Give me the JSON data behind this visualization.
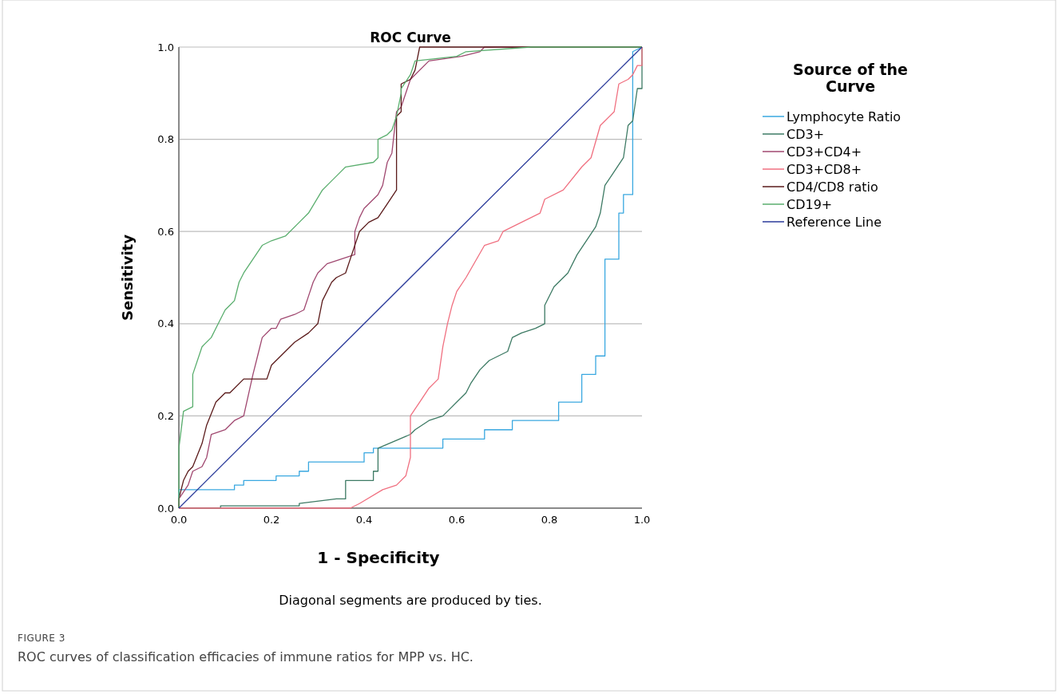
{
  "chart_data": {
    "type": "line",
    "title": "ROC Curve",
    "xlabel": "1 - Specificity",
    "ylabel": "Sensitivity",
    "legend_title": "Source of the Curve",
    "legend": "right",
    "grid": "y",
    "line_style": "solid",
    "marker": "none",
    "xlim": [
      0,
      1
    ],
    "ylim": [
      0,
      1
    ],
    "xticks": [
      {
        "value": 0,
        "label": "0.0"
      },
      {
        "value": 0.2,
        "label": "0.2"
      },
      {
        "value": 0.4,
        "label": "0.4"
      },
      {
        "value": 0.6,
        "label": "0.6"
      },
      {
        "value": 0.8,
        "label": "0.8"
      },
      {
        "value": 1,
        "label": "1.0"
      }
    ],
    "yticks": [
      {
        "value": 0,
        "label": "0.0"
      },
      {
        "value": 0.2,
        "label": "0.2"
      },
      {
        "value": 0.4,
        "label": "0.4"
      },
      {
        "value": 0.6,
        "label": "0.6"
      },
      {
        "value": 0.8,
        "label": "0.8"
      },
      {
        "value": 1,
        "label": "1.0"
      }
    ],
    "annotations": [
      "Diagonal segments are produced by ties.",
      "FIGURE 3",
      "ROC curves of classification efficacies of immune ratios for MPP vs. HC."
    ],
    "series": [
      {
        "name": "Lymphocyte Ratio",
        "color": "#3aa8e0",
        "x": [
          0,
          0,
          0.12,
          0.12,
          0.14,
          0.14,
          0.21,
          0.21,
          0.26,
          0.26,
          0.28,
          0.28,
          0.36,
          0.36,
          0.4,
          0.4,
          0.42,
          0.42,
          0.57,
          0.57,
          0.66,
          0.66,
          0.72,
          0.72,
          0.82,
          0.82,
          0.87,
          0.87,
          0.9,
          0.9,
          0.92,
          0.92,
          0.95,
          0.95,
          0.96,
          0.96,
          0.98,
          0.98,
          1
        ],
        "values": [
          0,
          0.04,
          0.04,
          0.05,
          0.05,
          0.06,
          0.06,
          0.07,
          0.07,
          0.08,
          0.08,
          0.1,
          0.1,
          0.1,
          0.1,
          0.12,
          0.12,
          0.13,
          0.13,
          0.15,
          0.15,
          0.17,
          0.17,
          0.19,
          0.19,
          0.23,
          0.23,
          0.29,
          0.29,
          0.33,
          0.33,
          0.54,
          0.54,
          0.64,
          0.64,
          0.68,
          0.68,
          0.99,
          1
        ]
      },
      {
        "name": "CD3+",
        "color": "#3d7a64",
        "x": [
          0,
          0.09,
          0.09,
          0.26,
          0.26,
          0.34,
          0.36,
          0.36,
          0.42,
          0.42,
          0.43,
          0.43,
          0.5,
          0.51,
          0.54,
          0.57,
          0.6,
          0.62,
          0.63,
          0.65,
          0.67,
          0.69,
          0.71,
          0.72,
          0.74,
          0.77,
          0.79,
          0.79,
          0.81,
          0.84,
          0.86,
          0.9,
          0.91,
          0.92,
          0.94,
          0.96,
          0.97,
          0.98,
          0.99,
          1,
          1
        ],
        "values": [
          0,
          0,
          0.005,
          0.005,
          0.01,
          0.02,
          0.02,
          0.06,
          0.06,
          0.08,
          0.08,
          0.13,
          0.16,
          0.17,
          0.19,
          0.2,
          0.23,
          0.25,
          0.27,
          0.3,
          0.32,
          0.33,
          0.34,
          0.37,
          0.38,
          0.39,
          0.4,
          0.44,
          0.48,
          0.51,
          0.55,
          0.61,
          0.64,
          0.7,
          0.73,
          0.76,
          0.83,
          0.84,
          0.91,
          0.91,
          1
        ]
      },
      {
        "name": "CD3+CD4+",
        "color": "#a04870",
        "x": [
          0,
          0,
          0.02,
          0.03,
          0.05,
          0.06,
          0.07,
          0.1,
          0.11,
          0.12,
          0.14,
          0.16,
          0.17,
          0.18,
          0.2,
          0.21,
          0.22,
          0.25,
          0.27,
          0.28,
          0.29,
          0.3,
          0.32,
          0.35,
          0.38,
          0.38,
          0.39,
          0.4,
          0.41,
          0.43,
          0.44,
          0.45,
          0.46,
          0.47,
          0.48,
          0.49,
          0.5,
          0.54,
          0.61,
          0.65,
          0.66,
          1
        ],
        "values": [
          0,
          0.02,
          0.05,
          0.08,
          0.09,
          0.11,
          0.16,
          0.17,
          0.18,
          0.19,
          0.2,
          0.29,
          0.33,
          0.37,
          0.39,
          0.39,
          0.41,
          0.42,
          0.43,
          0.46,
          0.49,
          0.51,
          0.53,
          0.54,
          0.55,
          0.6,
          0.63,
          0.65,
          0.66,
          0.68,
          0.7,
          0.75,
          0.77,
          0.86,
          0.87,
          0.9,
          0.93,
          0.97,
          0.98,
          0.99,
          1,
          1
        ]
      },
      {
        "name": "CD3+CD8+",
        "color": "#f07080",
        "x": [
          0,
          0.37,
          0.39,
          0.44,
          0.47,
          0.49,
          0.5,
          0.5,
          0.52,
          0.54,
          0.56,
          0.57,
          0.58,
          0.59,
          0.6,
          0.62,
          0.66,
          0.69,
          0.7,
          0.72,
          0.78,
          0.79,
          0.83,
          0.87,
          0.89,
          0.91,
          0.92,
          0.94,
          0.95,
          0.97,
          0.98,
          0.99,
          1,
          1
        ],
        "values": [
          0,
          0,
          0.01,
          0.04,
          0.05,
          0.07,
          0.11,
          0.2,
          0.23,
          0.26,
          0.28,
          0.35,
          0.4,
          0.44,
          0.47,
          0.5,
          0.57,
          0.58,
          0.6,
          0.61,
          0.64,
          0.67,
          0.69,
          0.74,
          0.76,
          0.83,
          0.84,
          0.86,
          0.92,
          0.93,
          0.94,
          0.96,
          0.96,
          1
        ]
      },
      {
        "name": "CD4/CD8 ratio",
        "color": "#5a1a1a",
        "x": [
          0,
          0,
          0.01,
          0.02,
          0.03,
          0.05,
          0.06,
          0.08,
          0.1,
          0.11,
          0.14,
          0.19,
          0.2,
          0.22,
          0.25,
          0.28,
          0.3,
          0.31,
          0.33,
          0.34,
          0.36,
          0.37,
          0.39,
          0.41,
          0.43,
          0.45,
          0.47,
          0.47,
          0.48,
          0.48,
          0.5,
          0.51,
          0.52,
          1
        ],
        "values": [
          0,
          0.02,
          0.06,
          0.08,
          0.09,
          0.14,
          0.18,
          0.23,
          0.25,
          0.25,
          0.28,
          0.28,
          0.31,
          0.33,
          0.36,
          0.38,
          0.4,
          0.45,
          0.49,
          0.5,
          0.51,
          0.54,
          0.6,
          0.62,
          0.63,
          0.66,
          0.69,
          0.85,
          0.86,
          0.92,
          0.93,
          0.95,
          1,
          1
        ]
      },
      {
        "name": "CD19+",
        "color": "#5aae6e",
        "x": [
          0,
          0,
          0.01,
          0.03,
          0.03,
          0.05,
          0.07,
          0.08,
          0.09,
          0.1,
          0.11,
          0.12,
          0.13,
          0.14,
          0.16,
          0.18,
          0.2,
          0.23,
          0.26,
          0.28,
          0.31,
          0.33,
          0.34,
          0.36,
          0.42,
          0.43,
          0.43,
          0.45,
          0.46,
          0.47,
          0.48,
          0.48,
          0.5,
          0.51,
          0.6,
          0.62,
          0.76,
          1
        ],
        "values": [
          0,
          0.13,
          0.21,
          0.22,
          0.29,
          0.35,
          0.37,
          0.39,
          0.41,
          0.43,
          0.44,
          0.45,
          0.49,
          0.51,
          0.54,
          0.57,
          0.58,
          0.59,
          0.62,
          0.64,
          0.69,
          0.71,
          0.72,
          0.74,
          0.75,
          0.76,
          0.8,
          0.81,
          0.82,
          0.85,
          0.9,
          0.91,
          0.94,
          0.97,
          0.98,
          0.99,
          1,
          1
        ]
      },
      {
        "name": "Reference Line",
        "color": "#2a3a9a",
        "x": [
          0,
          1
        ],
        "values": [
          0,
          1
        ]
      }
    ]
  }
}
